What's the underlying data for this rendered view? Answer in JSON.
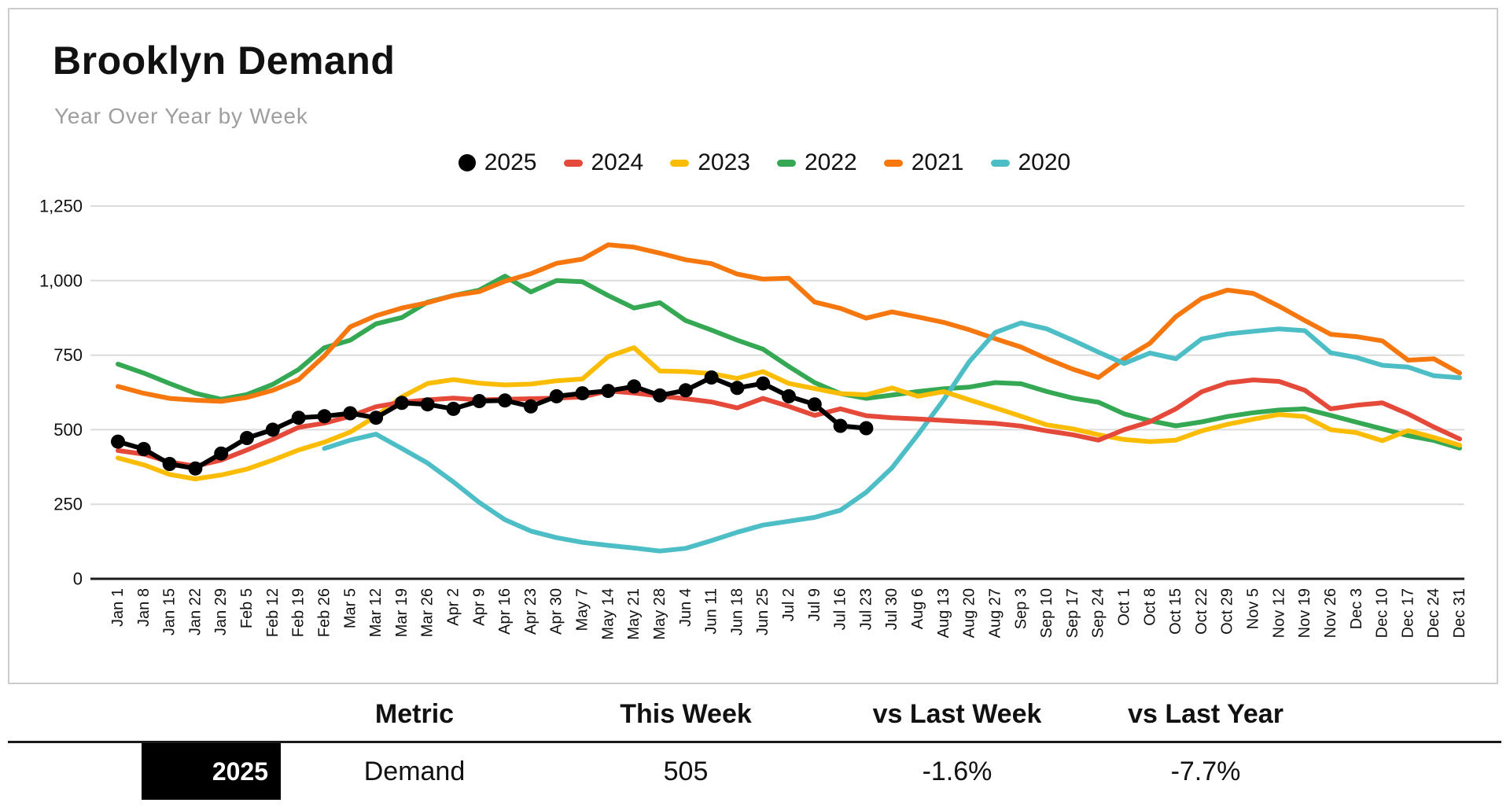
{
  "header": {
    "title": "Brooklyn Demand",
    "subtitle": "Year Over Year by Week"
  },
  "chart_data": {
    "type": "line",
    "title": "Brooklyn Demand",
    "subtitle": "Year Over Year by Week",
    "xlabel": "",
    "ylabel": "",
    "ylim": [
      0,
      1250
    ],
    "yticks": [
      0,
      250,
      500,
      750,
      1000,
      1250
    ],
    "grid": true,
    "legend_position": "top-center",
    "categories": [
      "Jan 1",
      "Jan 8",
      "Jan 15",
      "Jan 22",
      "Jan 29",
      "Feb 5",
      "Feb 12",
      "Feb 19",
      "Feb 26",
      "Mar 5",
      "Mar 12",
      "Mar 19",
      "Mar 26",
      "Apr 2",
      "Apr 9",
      "Apr 16",
      "Apr 23",
      "Apr 30",
      "May 7",
      "May 14",
      "May 21",
      "May 28",
      "Jun 4",
      "Jun 11",
      "Jun 18",
      "Jun 25",
      "Jul 2",
      "Jul 9",
      "Jul 16",
      "Jul 23",
      "Jul 30",
      "Aug 6",
      "Aug 13",
      "Aug 20",
      "Aug 27",
      "Sep 3",
      "Sep 10",
      "Sep 17",
      "Sep 24",
      "Oct 1",
      "Oct 8",
      "Oct 15",
      "Oct 22",
      "Oct 29",
      "Nov 5",
      "Nov 12",
      "Nov 19",
      "Nov 26",
      "Dec 3",
      "Dec 10",
      "Dec 17",
      "Dec 24",
      "Dec 31"
    ],
    "series": [
      {
        "name": "2025",
        "color": "#000000",
        "marker": "circle",
        "values": [
          460,
          435,
          385,
          370,
          420,
          472,
          500,
          540,
          545,
          555,
          540,
          590,
          585,
          570,
          596,
          598,
          578,
          612,
          622,
          630,
          645,
          615,
          632,
          675,
          640,
          655,
          612,
          585,
          513,
          505,
          null,
          null,
          null,
          null,
          null,
          null,
          null,
          null,
          null,
          null,
          null,
          null,
          null,
          null,
          null,
          null,
          null,
          null,
          null,
          null,
          null,
          null,
          null
        ]
      },
      {
        "name": "2024",
        "color": "#e5493a",
        "marker": "none",
        "values": [
          430,
          418,
          392,
          378,
          398,
          432,
          468,
          508,
          522,
          545,
          577,
          592,
          600,
          606,
          600,
          602,
          604,
          606,
          610,
          630,
          623,
          613,
          604,
          593,
          573,
          605,
          578,
          548,
          570,
          547,
          540,
          536,
          531,
          526,
          521,
          512,
          496,
          483,
          465,
          500,
          527,
          570,
          627,
          657,
          667,
          662,
          632,
          570,
          582,
          590,
          553,
          509,
          469
        ]
      },
      {
        "name": "2023",
        "color": "#fbbc04",
        "marker": "none",
        "values": [
          405,
          382,
          350,
          335,
          348,
          368,
          398,
          432,
          458,
          492,
          545,
          610,
          655,
          668,
          656,
          650,
          653,
          664,
          670,
          745,
          775,
          697,
          695,
          688,
          672,
          695,
          655,
          638,
          621,
          617,
          640,
          612,
          628,
          600,
          573,
          545,
          516,
          503,
          483,
          467,
          460,
          465,
          496,
          518,
          535,
          551,
          544,
          500,
          490,
          463,
          497,
          474,
          448
        ]
      },
      {
        "name": "2022",
        "color": "#34a853",
        "marker": "none",
        "values": [
          720,
          690,
          655,
          622,
          602,
          618,
          652,
          702,
          775,
          800,
          855,
          876,
          928,
          950,
          968,
          1015,
          962,
          1000,
          996,
          950,
          908,
          926,
          866,
          834,
          800,
          770,
          712,
          658,
          621,
          605,
          616,
          628,
          637,
          643,
          658,
          654,
          628,
          606,
          592,
          553,
          530,
          513,
          526,
          544,
          557,
          566,
          570,
          548,
          525,
          503,
          480,
          464,
          438
        ]
      },
      {
        "name": "2021",
        "color": "#f7770f",
        "marker": "none",
        "values": [
          645,
          622,
          605,
          599,
          595,
          608,
          632,
          668,
          748,
          845,
          882,
          908,
          926,
          950,
          963,
          998,
          1023,
          1058,
          1072,
          1120,
          1112,
          1092,
          1070,
          1057,
          1022,
          1005,
          1008,
          928,
          907,
          874,
          895,
          878,
          860,
          835,
          805,
          777,
          738,
          703,
          675,
          738,
          790,
          879,
          940,
          968,
          957,
          914,
          866,
          820,
          812,
          798,
          733,
          738,
          690
        ]
      },
      {
        "name": "2020",
        "color": "#4dbdc6",
        "marker": "none",
        "values": [
          null,
          null,
          null,
          null,
          null,
          null,
          null,
          null,
          437,
          465,
          485,
          437,
          388,
          325,
          256,
          198,
          160,
          138,
          122,
          112,
          103,
          93,
          102,
          128,
          156,
          180,
          193,
          206,
          230,
          290,
          372,
          483,
          600,
          729,
          826,
          858,
          838,
          800,
          760,
          722,
          757,
          738,
          804,
          821,
          830,
          838,
          832,
          758,
          742,
          716,
          710,
          681,
          674
        ]
      }
    ]
  },
  "table": {
    "headers": [
      "Metric",
      "This Week",
      "vs Last Week",
      "vs Last Year"
    ],
    "rows": [
      {
        "year": "2025",
        "metric": "Demand",
        "this_week": "505",
        "vs_last_week": "-1.6%",
        "vs_last_year": "-7.7%"
      }
    ]
  }
}
